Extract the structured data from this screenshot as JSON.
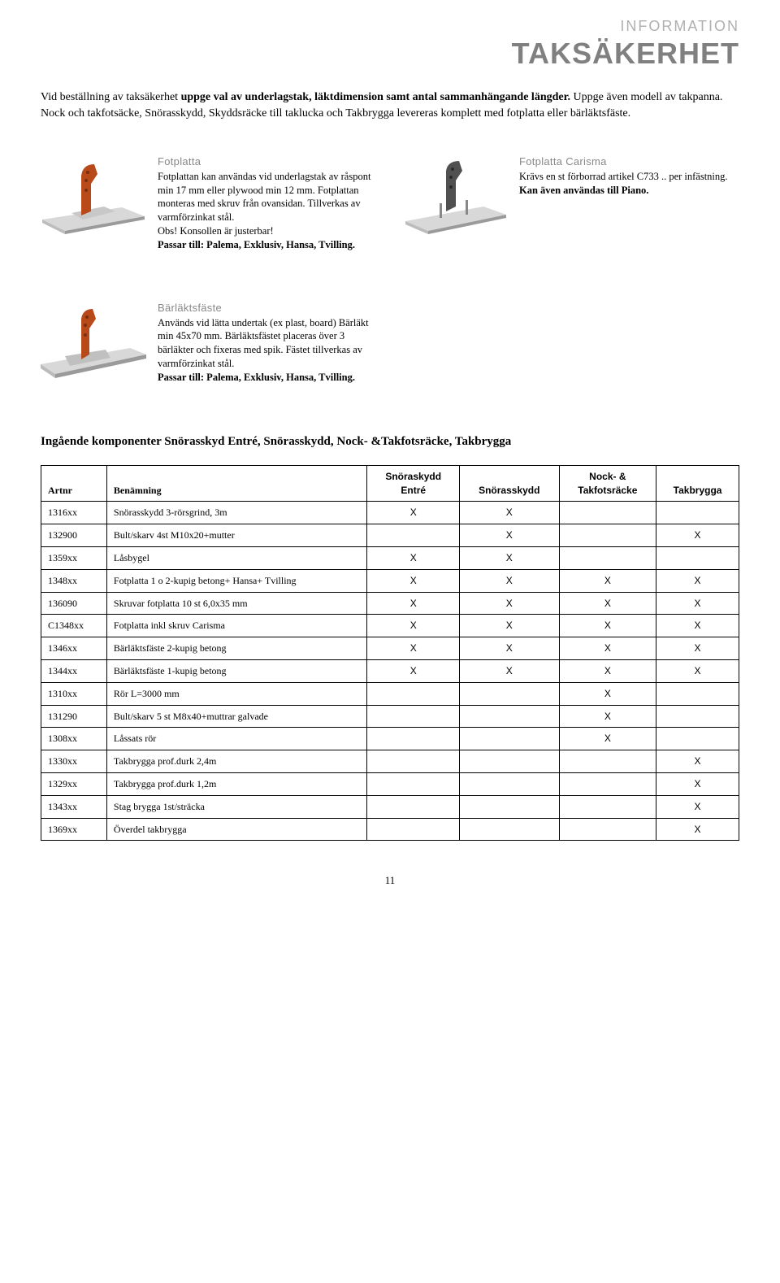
{
  "header": {
    "sub": "INFORMATION",
    "main": "TAKSÄKERHET"
  },
  "intro": {
    "line1_part1": "Vid beställning av taksäkerhet ",
    "line1_bold": "uppge val av underlagstak, läktdimension samt antal sammanhängande längder.",
    "line1_part2": " Uppge även modell av takpanna.",
    "line2": "Nock och takfotsäcke, Snörasskydd, Skyddsräcke till taklucka och Takbrygga levereras komplett med fotplatta eller bärläktsfäste."
  },
  "products": {
    "fotplatta": {
      "title": "Fotplatta",
      "body": "Fotplattan kan användas vid underlagstak av råspont min 17 mm eller plywood min 12 mm. Fotplattan monteras med skruv från ovansidan. Tillverkas av varmförzinkat stål.",
      "body2": "Obs! Konsollen är justerbar!",
      "body3": "Passar till: Palema, Exklusiv, Hansa, Tvilling."
    },
    "carisma": {
      "title": "Fotplatta Carisma",
      "body": "Krävs en st förborrad artikel C733 .. per infästning.",
      "body2": "Kan även användas till Piano."
    },
    "barlakt": {
      "title": "Bärläktsfäste",
      "body": "Används vid lätta undertak (ex plast, board) Bärläkt min 45x70 mm. Bärläktsfästet placeras över 3 bärläkter och fixeras med spik. Fästet tillverkas av varmförzinkat stål.",
      "body2": "Passar till: Palema, Exklusiv, Hansa, Tvilling."
    }
  },
  "colors": {
    "bracket": "#b84a1a",
    "metal_light": "#d8d8d8",
    "metal_mid": "#bcbcbc",
    "metal_dark": "#9a9a9a"
  },
  "table": {
    "heading": "Ingående komponenter Snörasskyd Entré, Snörasskydd, Nock- &Takfotsräcke, Takbrygga",
    "columns": [
      "Artnr",
      "Benämning",
      "Snöraskydd Entré",
      "Snörasskydd",
      "Nock- & Takfotsräcke",
      "Takbrygga"
    ],
    "rows": [
      [
        "1316xx",
        "Snörasskydd 3-rörsgrind, 3m",
        "X",
        "X",
        "",
        ""
      ],
      [
        "132900",
        "Bult/skarv 4st M10x20+mutter",
        "",
        "X",
        "",
        "X"
      ],
      [
        "1359xx",
        "Låsbygel",
        "X",
        "X",
        "",
        ""
      ],
      [
        "1348xx",
        "Fotplatta 1 o 2-kupig betong+ Hansa+ Tvilling",
        "X",
        "X",
        "X",
        "X"
      ],
      [
        "136090",
        "Skruvar fotplatta 10 st 6,0x35 mm",
        "X",
        "X",
        "X",
        "X"
      ],
      [
        "C1348xx",
        "Fotplatta inkl skruv Carisma",
        "X",
        "X",
        "X",
        "X"
      ],
      [
        "1346xx",
        "Bärläktsfäste 2-kupig betong",
        "X",
        "X",
        "X",
        "X"
      ],
      [
        "1344xx",
        "Bärläktsfäste 1-kupig betong",
        "X",
        "X",
        "X",
        "X"
      ],
      [
        "1310xx",
        "Rör L=3000 mm",
        "",
        "",
        "X",
        ""
      ],
      [
        "131290",
        "Bult/skarv 5 st M8x40+muttrar galvade",
        "",
        "",
        "X",
        ""
      ],
      [
        "1308xx",
        "Låssats rör",
        "",
        "",
        "X",
        ""
      ],
      [
        "1330xx",
        "Takbrygga prof.durk 2,4m",
        "",
        "",
        "",
        "X"
      ],
      [
        "1329xx",
        "Takbrygga prof.durk 1,2m",
        "",
        "",
        "",
        "X"
      ],
      [
        "1343xx",
        "Stag brygga 1st/sträcka",
        "",
        "",
        "",
        "X"
      ],
      [
        "1369xx",
        "Överdel takbrygga",
        "",
        "",
        "",
        "X"
      ]
    ]
  },
  "page_number": "11"
}
